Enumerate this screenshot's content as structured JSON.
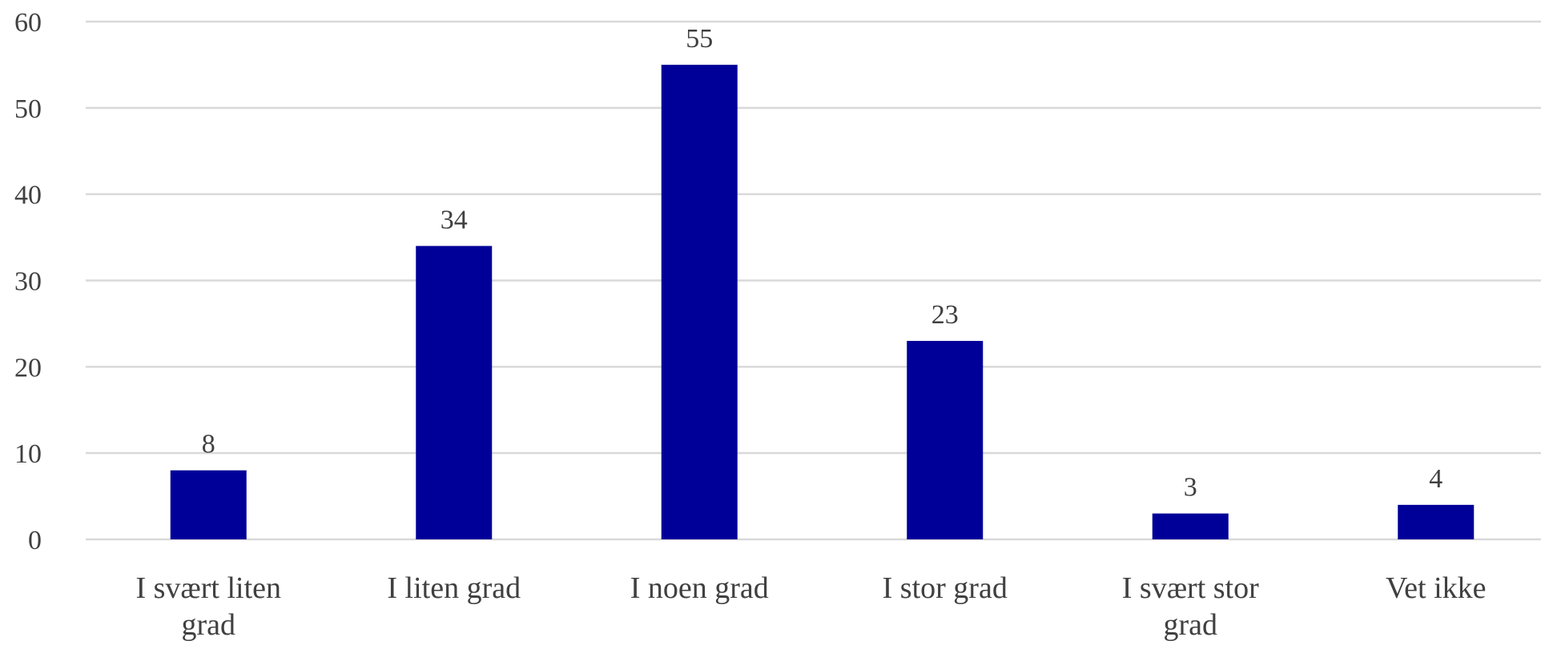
{
  "chart_data": {
    "type": "bar",
    "categories": [
      [
        "I svært liten",
        "grad"
      ],
      [
        "I liten grad"
      ],
      [
        "I noen grad"
      ],
      [
        "I stor grad"
      ],
      [
        "I svært stor",
        "grad"
      ],
      [
        "Vet ikke"
      ]
    ],
    "values": [
      8,
      34,
      55,
      23,
      3,
      4
    ],
    "data_labels": [
      "8",
      "34",
      "55",
      "23",
      "3",
      "4"
    ],
    "yticks": [
      0,
      10,
      20,
      30,
      40,
      50,
      60
    ],
    "ytick_labels": [
      "0",
      "10",
      "20",
      "30",
      "40",
      "50",
      "60"
    ],
    "ylim": [
      0,
      60
    ],
    "grid": true,
    "legend": "none",
    "bar_color": "#000099",
    "grid_color": "#d9d9d9",
    "text_color": "#404040"
  }
}
